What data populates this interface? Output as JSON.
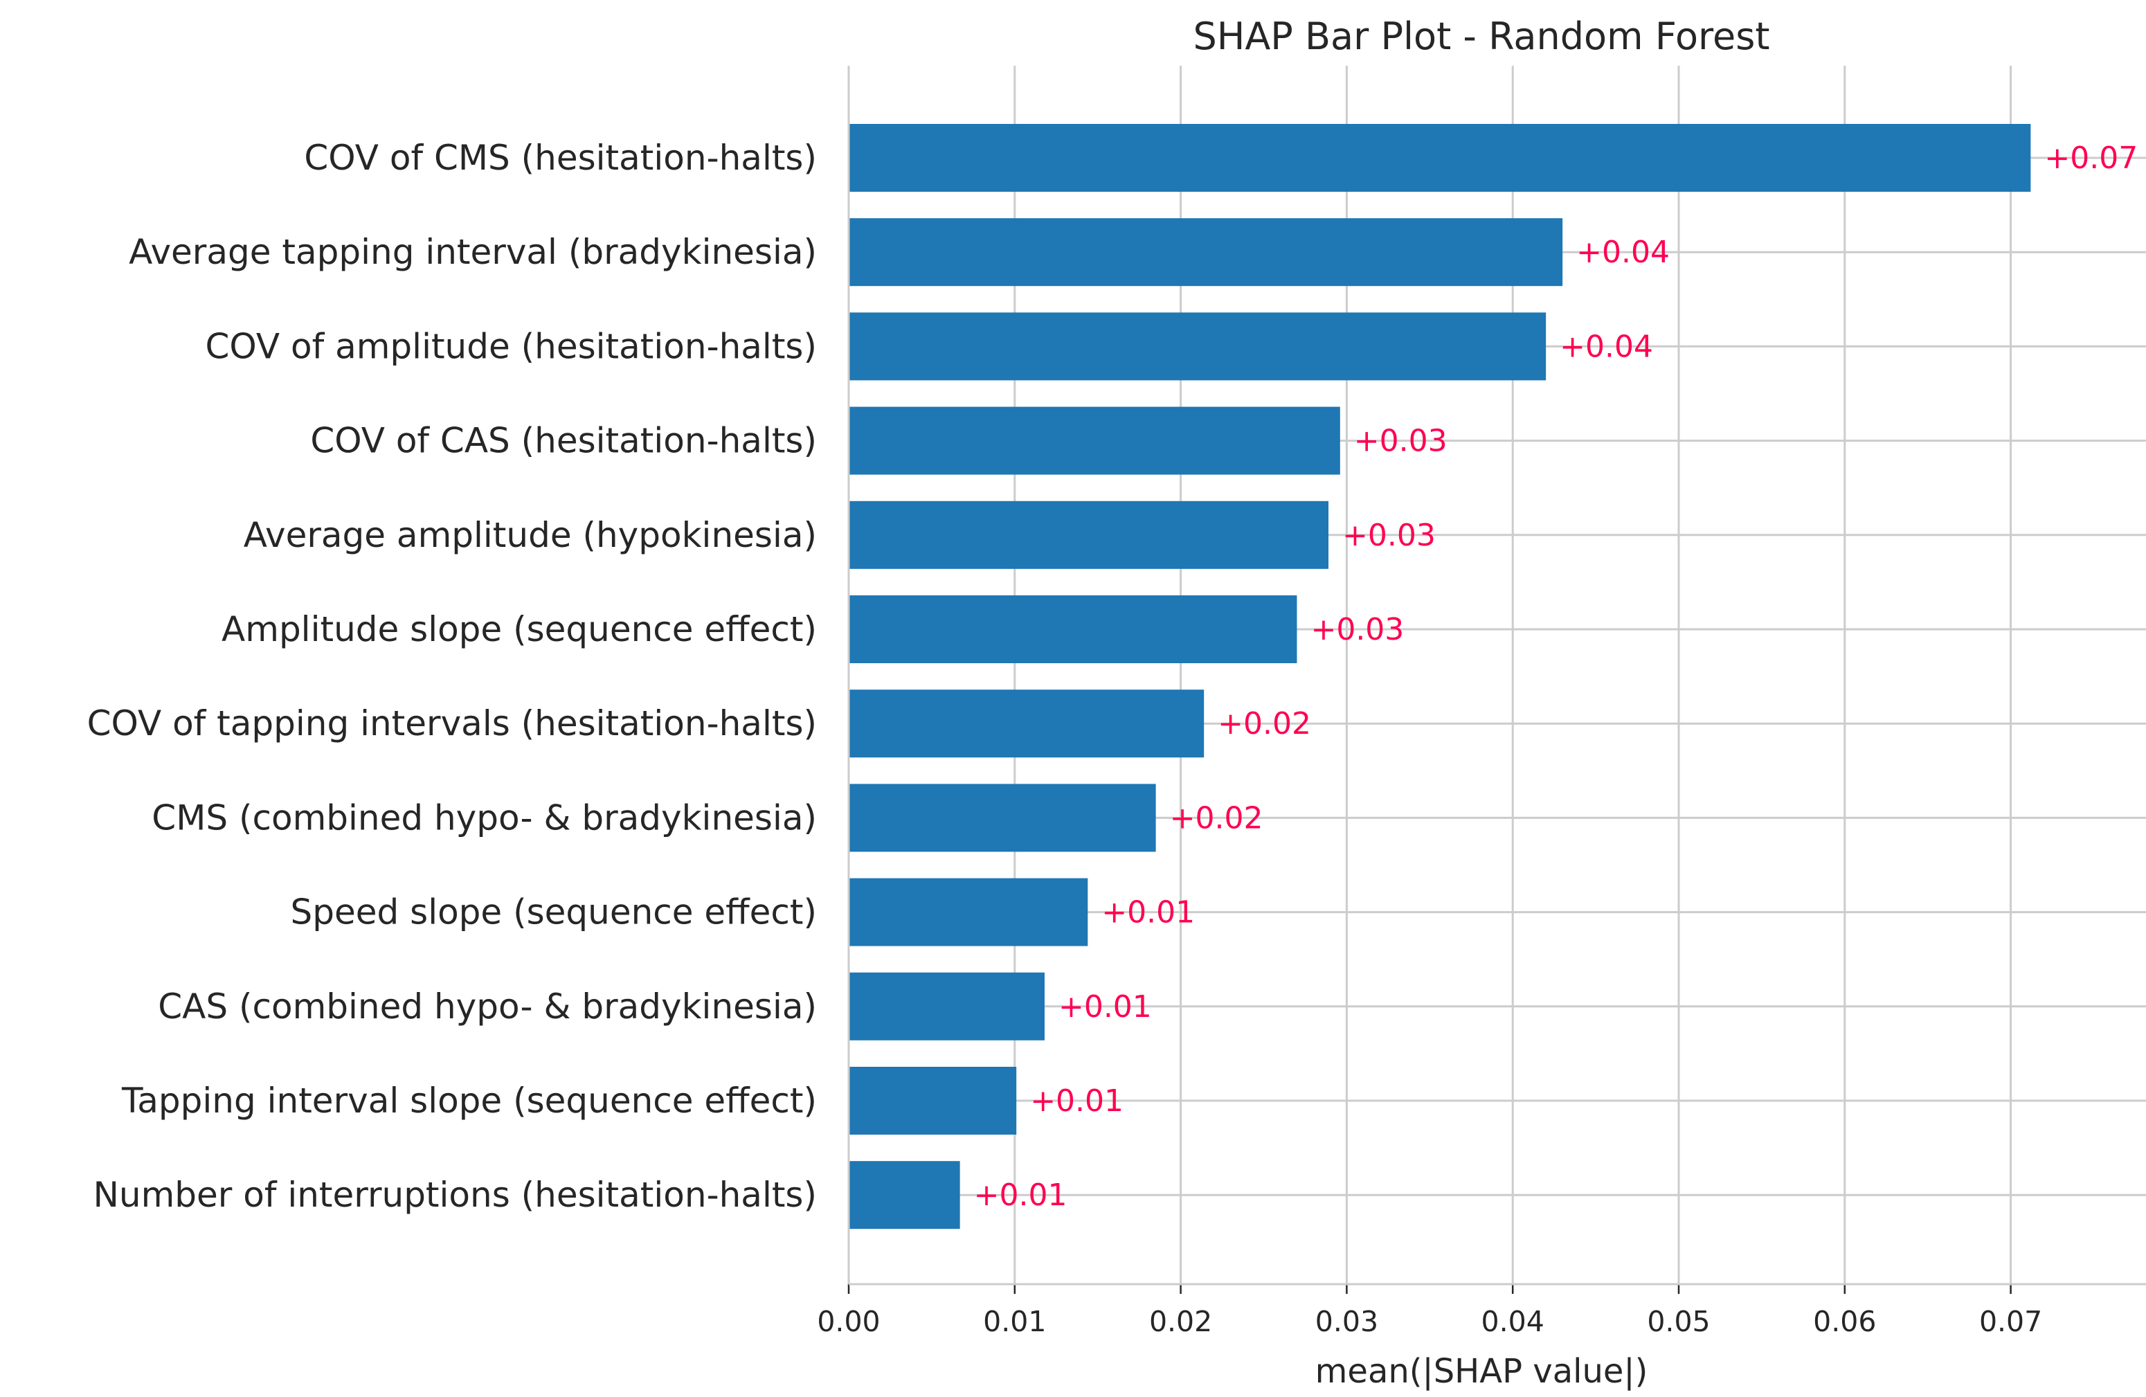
{
  "chart_data": {
    "type": "bar",
    "orientation": "horizontal",
    "title": "SHAP Bar Plot - Random Forest",
    "xlabel": "mean(|SHAP value|)",
    "ylabel": "",
    "xlim": [
      0,
      0.078
    ],
    "xticks": [
      0.0,
      0.01,
      0.02,
      0.03,
      0.04,
      0.05,
      0.06,
      0.07
    ],
    "xtick_labels": [
      "0.00",
      "0.01",
      "0.02",
      "0.03",
      "0.04",
      "0.05",
      "0.06",
      "0.07"
    ],
    "grid": true,
    "legend": "none",
    "categories": [
      "COV of CMS (hesitation-halts)",
      "Average tapping interval (bradykinesia)",
      "COV of amplitude (hesitation-halts)",
      "COV of CAS (hesitation-halts)",
      "Average amplitude (hypokinesia)",
      "Amplitude slope (sequence effect)",
      "COV of tapping intervals (hesitation-halts)",
      "CMS (combined hypo- & bradykinesia)",
      "Speed slope (sequence effect)",
      "CAS (combined hypo- & bradykinesia)",
      "Tapping interval slope (sequence effect)",
      "Number of interruptions (hesitation-halts)"
    ],
    "values": [
      0.0712,
      0.043,
      0.042,
      0.0296,
      0.0289,
      0.027,
      0.0214,
      0.0185,
      0.0144,
      0.0118,
      0.0101,
      0.0067
    ],
    "value_labels": [
      "+0.07",
      "+0.04",
      "+0.04",
      "+0.03",
      "+0.03",
      "+0.03",
      "+0.02",
      "+0.02",
      "+0.01",
      "+0.01",
      "+0.01",
      "+0.01"
    ],
    "colors": {
      "bar": "#1f77b4",
      "value_label": "#ff0051",
      "grid": "#cccccc",
      "text": "#262626",
      "axis": "#cccccc"
    }
  }
}
